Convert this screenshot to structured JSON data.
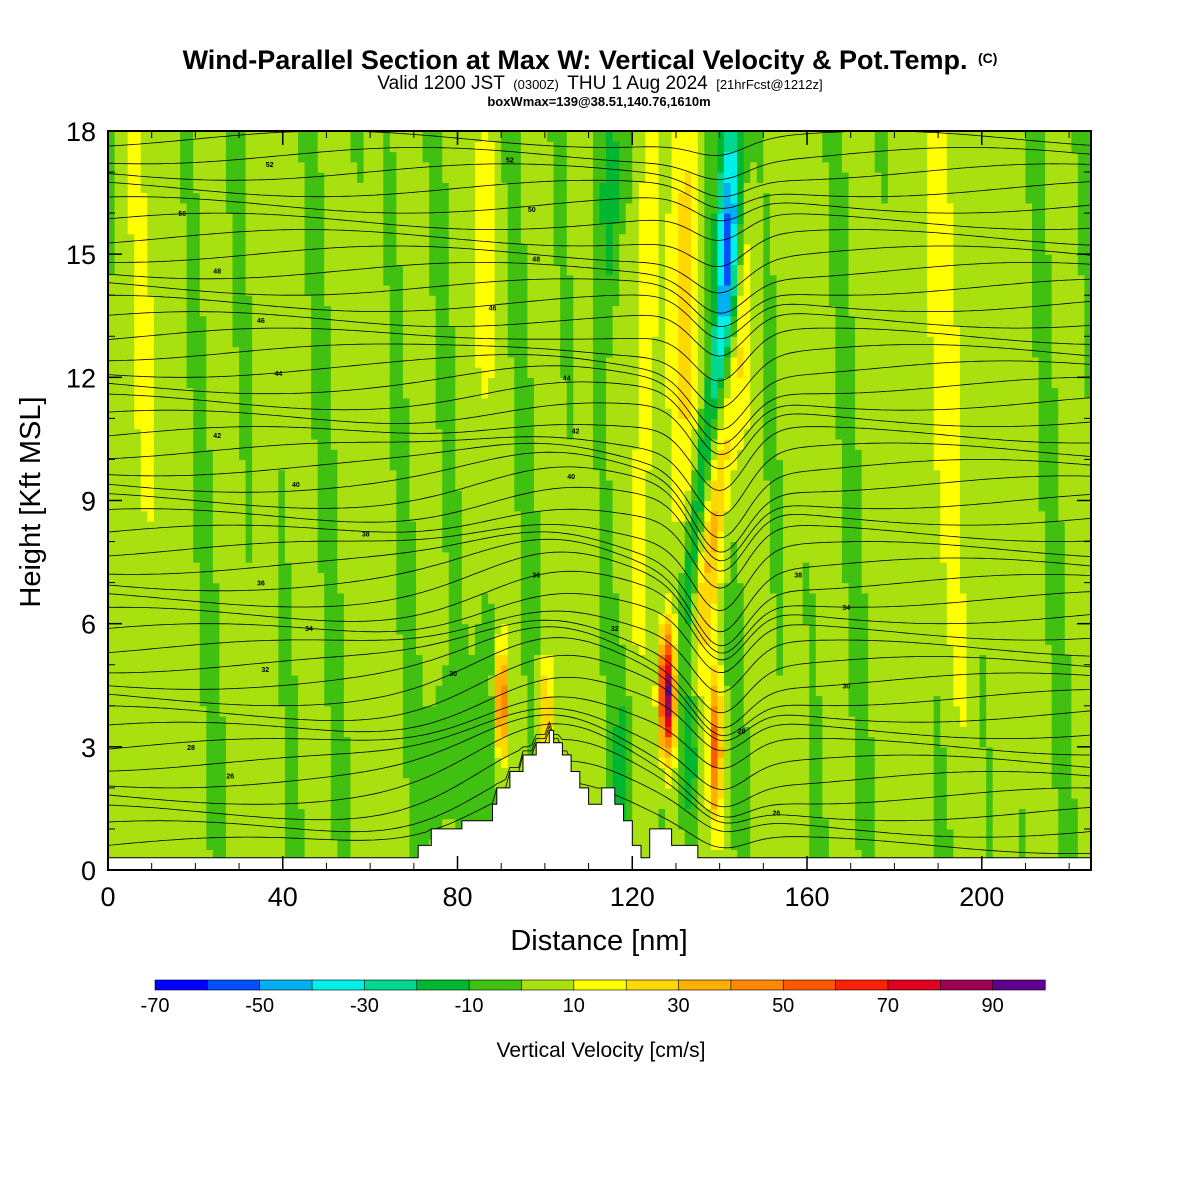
{
  "header": {
    "title_main": "Wind-Parallel Section at Max W: Vertical Velocity & Pot.Temp.",
    "title_mark": "(C)",
    "valid_prefix": "Valid 1200 JST",
    "valid_utc": "(0300Z)",
    "valid_date": "THU 1 Aug 2024",
    "forecast_tag": "[21hrFcst@1212z]",
    "box_info": "boxWmax=139@38.51,140.76,1610m"
  },
  "chart_data": {
    "type": "heatmap",
    "xlabel": "Distance [nm]",
    "ylabel": "Height [Kft MSL]",
    "xlim": [
      0,
      225
    ],
    "ylim": [
      0,
      18
    ],
    "x_ticks": [
      "0",
      "40",
      "80",
      "120",
      "160",
      "200"
    ],
    "y_ticks": [
      "0",
      "3",
      "6",
      "9",
      "12",
      "15",
      "18"
    ],
    "colorbar": {
      "label": "Vertical Velocity [cm/s]",
      "bounds": [
        -70,
        -60,
        -50,
        -40,
        -30,
        -20,
        -10,
        0,
        10,
        20,
        30,
        40,
        50,
        60,
        70,
        80,
        90,
        100
      ],
      "tick_labels": [
        "-70",
        "-50",
        "-30",
        "-10",
        "10",
        "30",
        "50",
        "70",
        "90"
      ],
      "colors": [
        "#0000ff",
        "#0050ff",
        "#00b0f0",
        "#00f0e8",
        "#00d890",
        "#00b830",
        "#40c010",
        "#a8e010",
        "#ffff00",
        "#ffd800",
        "#ffb000",
        "#ff8800",
        "#ff5800",
        "#ff2000",
        "#e00020",
        "#a00050",
        "#600090"
      ]
    },
    "terrain_profile": [
      [
        0,
        0.3
      ],
      [
        71,
        0.3
      ],
      [
        71,
        0.6
      ],
      [
        74,
        0.6
      ],
      [
        74,
        1.0
      ],
      [
        81,
        1.0
      ],
      [
        81,
        1.2
      ],
      [
        88,
        1.2
      ],
      [
        88,
        1.6
      ],
      [
        89,
        1.6
      ],
      [
        89,
        2.0
      ],
      [
        92,
        2.0
      ],
      [
        92,
        2.4
      ],
      [
        95,
        2.4
      ],
      [
        95,
        2.8
      ],
      [
        98,
        2.8
      ],
      [
        98,
        3.1
      ],
      [
        101,
        3.1
      ],
      [
        101,
        3.4
      ],
      [
        102,
        3.4
      ],
      [
        102,
        3.1
      ],
      [
        104,
        3.1
      ],
      [
        104,
        2.8
      ],
      [
        106,
        2.8
      ],
      [
        106,
        2.4
      ],
      [
        108,
        2.4
      ],
      [
        108,
        2.0
      ],
      [
        110,
        2.0
      ],
      [
        110,
        1.6
      ],
      [
        113,
        1.6
      ],
      [
        113,
        2.0
      ],
      [
        116,
        2.0
      ],
      [
        116,
        1.6
      ],
      [
        118,
        1.6
      ],
      [
        118,
        1.2
      ],
      [
        120,
        1.2
      ],
      [
        120,
        0.6
      ],
      [
        122,
        0.6
      ],
      [
        122,
        0.3
      ],
      [
        124,
        0.3
      ],
      [
        124,
        1.0
      ],
      [
        129,
        1.0
      ],
      [
        129,
        0.6
      ],
      [
        135,
        0.6
      ],
      [
        135,
        0.3
      ],
      [
        225,
        0.3
      ]
    ],
    "theta_contours": [
      {
        "label": "26",
        "label_pos": [
          [
            28,
            2.3
          ],
          [
            153,
            1.4
          ]
        ]
      },
      {
        "label": "28",
        "label_pos": [
          [
            19,
            3.0
          ],
          [
            145,
            3.4
          ]
        ]
      },
      {
        "label": "30",
        "label_pos": [
          [
            79,
            4.8
          ],
          [
            169,
            4.5
          ]
        ]
      },
      {
        "label": "32",
        "label_pos": [
          [
            36,
            4.9
          ],
          [
            116,
            5.9
          ]
        ]
      },
      {
        "label": "34",
        "label_pos": [
          [
            46,
            5.9
          ],
          [
            169,
            6.4
          ]
        ]
      },
      {
        "label": "36",
        "label_pos": [
          [
            35,
            7.0
          ],
          [
            98,
            7.2
          ]
        ]
      },
      {
        "label": "38",
        "label_pos": [
          [
            59,
            8.2
          ],
          [
            158,
            7.2
          ]
        ]
      },
      {
        "label": "40",
        "label_pos": [
          [
            43,
            9.4
          ],
          [
            106,
            9.6
          ]
        ]
      },
      {
        "label": "42",
        "label_pos": [
          [
            25,
            10.6
          ],
          [
            107,
            10.7
          ]
        ]
      },
      {
        "label": "44",
        "label_pos": [
          [
            39,
            12.1
          ],
          [
            105,
            12.0
          ]
        ]
      },
      {
        "label": "46",
        "label_pos": [
          [
            35,
            13.4
          ],
          [
            88,
            13.7
          ]
        ]
      },
      {
        "label": "48",
        "label_pos": [
          [
            25,
            14.6
          ],
          [
            98,
            14.9
          ]
        ]
      },
      {
        "label": "50",
        "label_pos": [
          [
            17,
            16.0
          ],
          [
            97,
            16.1
          ]
        ]
      },
      {
        "label": "52",
        "label_pos": [
          [
            37,
            17.2
          ],
          [
            92,
            17.3
          ]
        ]
      }
    ]
  }
}
